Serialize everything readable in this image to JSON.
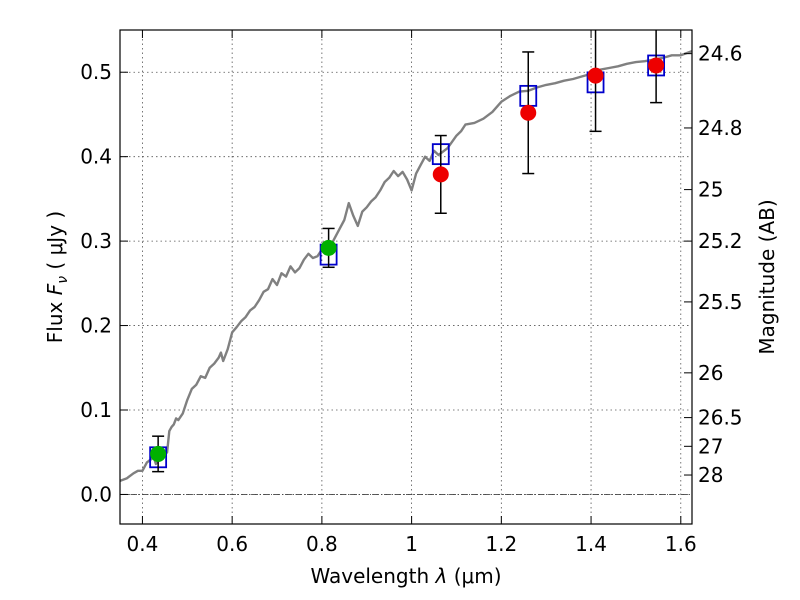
{
  "chart_data": {
    "type": "scatter",
    "xlabel": "Wavelength",
    "xlabel_symbol": "λ",
    "xlabel_unit": "(μm)",
    "ylabel": "Flux",
    "ylabel_symbol": "F",
    "ylabel_sub": "ν",
    "ylabel_unit": "( μJy )",
    "y2label": "Magnitude (AB)",
    "xlim": [
      0.35,
      1.625
    ],
    "ylim": [
      -0.035,
      0.55
    ],
    "grid": true,
    "x_ticks": [
      0.4,
      0.6,
      0.8,
      1.0,
      1.2,
      1.4,
      1.6
    ],
    "x_tick_labels": [
      "0.4",
      "0.6",
      "0.8",
      "1",
      "1.2",
      "1.4",
      "1.6"
    ],
    "y_ticks": [
      0.0,
      0.1,
      0.2,
      0.3,
      0.4,
      0.5
    ],
    "y_tick_labels": [
      "0.0",
      "0.1",
      "0.2",
      "0.3",
      "0.4",
      "0.5"
    ],
    "mag_ticks": [
      {
        "label": "24.6",
        "flux": 0.522
      },
      {
        "label": "24.8",
        "flux": 0.434
      },
      {
        "label": "25",
        "flux": 0.361
      },
      {
        "label": "25.2",
        "flux": 0.3
      },
      {
        "label": "25.5",
        "flux": 0.228
      },
      {
        "label": "26",
        "flux": 0.144
      },
      {
        "label": "26.5",
        "flux": 0.091
      },
      {
        "label": "27",
        "flux": 0.057
      },
      {
        "label": "28",
        "flux": 0.023
      }
    ],
    "model_line": {
      "color": "#808080",
      "x": [
        0.35,
        0.365,
        0.38,
        0.39,
        0.4,
        0.41,
        0.42,
        0.425,
        0.43,
        0.435,
        0.44,
        0.45,
        0.455,
        0.46,
        0.465,
        0.47,
        0.475,
        0.48,
        0.49,
        0.5,
        0.51,
        0.52,
        0.53,
        0.54,
        0.55,
        0.56,
        0.57,
        0.575,
        0.58,
        0.59,
        0.6,
        0.61,
        0.62,
        0.63,
        0.64,
        0.65,
        0.66,
        0.67,
        0.68,
        0.69,
        0.7,
        0.71,
        0.72,
        0.73,
        0.74,
        0.75,
        0.76,
        0.77,
        0.78,
        0.79,
        0.8,
        0.81,
        0.82,
        0.83,
        0.84,
        0.85,
        0.86,
        0.87,
        0.88,
        0.89,
        0.9,
        0.91,
        0.92,
        0.93,
        0.94,
        0.95,
        0.96,
        0.97,
        0.98,
        0.99,
        1.0,
        1.01,
        1.02,
        1.03,
        1.04,
        1.05,
        1.06,
        1.08,
        1.1,
        1.11,
        1.12,
        1.14,
        1.16,
        1.18,
        1.2,
        1.22,
        1.24,
        1.26,
        1.28,
        1.3,
        1.32,
        1.34,
        1.36,
        1.38,
        1.4,
        1.42,
        1.44,
        1.46,
        1.48,
        1.5,
        1.52,
        1.54,
        1.56,
        1.58,
        1.6,
        1.625
      ],
      "y": [
        0.016,
        0.019,
        0.025,
        0.028,
        0.028,
        0.038,
        0.042,
        0.045,
        0.036,
        0.04,
        0.045,
        0.047,
        0.05,
        0.075,
        0.08,
        0.083,
        0.09,
        0.088,
        0.096,
        0.112,
        0.125,
        0.13,
        0.14,
        0.138,
        0.15,
        0.155,
        0.162,
        0.168,
        0.158,
        0.172,
        0.192,
        0.198,
        0.205,
        0.21,
        0.218,
        0.222,
        0.23,
        0.24,
        0.243,
        0.255,
        0.248,
        0.262,
        0.258,
        0.27,
        0.263,
        0.268,
        0.278,
        0.285,
        0.28,
        0.282,
        0.29,
        0.285,
        0.295,
        0.305,
        0.315,
        0.325,
        0.345,
        0.33,
        0.318,
        0.335,
        0.34,
        0.347,
        0.352,
        0.36,
        0.37,
        0.375,
        0.383,
        0.377,
        0.382,
        0.373,
        0.36,
        0.38,
        0.39,
        0.4,
        0.395,
        0.407,
        0.402,
        0.41,
        0.425,
        0.43,
        0.438,
        0.44,
        0.445,
        0.453,
        0.465,
        0.472,
        0.477,
        0.478,
        0.482,
        0.485,
        0.487,
        0.49,
        0.492,
        0.495,
        0.498,
        0.503,
        0.505,
        0.507,
        0.51,
        0.512,
        0.513,
        0.515,
        0.517,
        0.52,
        0.52,
        0.525
      ]
    },
    "series": [
      {
        "marker": "open-square",
        "color": "#0000cc",
        "x": [
          0.435,
          0.815,
          1.065,
          1.26,
          1.41,
          1.545
        ],
        "y": [
          0.044,
          0.284,
          0.403,
          0.472,
          0.488,
          0.508
        ]
      },
      {
        "marker": "filled-circle",
        "color": "#00b000",
        "x": [
          0.435,
          0.815
        ],
        "y": [
          0.048,
          0.292
        ],
        "err": [
          0.021,
          0.023
        ]
      },
      {
        "marker": "filled-circle",
        "color": "#ee0000",
        "x": [
          1.065,
          1.26,
          1.41,
          1.545
        ],
        "y": [
          0.379,
          0.452,
          0.496,
          0.508
        ],
        "err": [
          0.046,
          0.072,
          0.066,
          0.044
        ]
      }
    ]
  }
}
